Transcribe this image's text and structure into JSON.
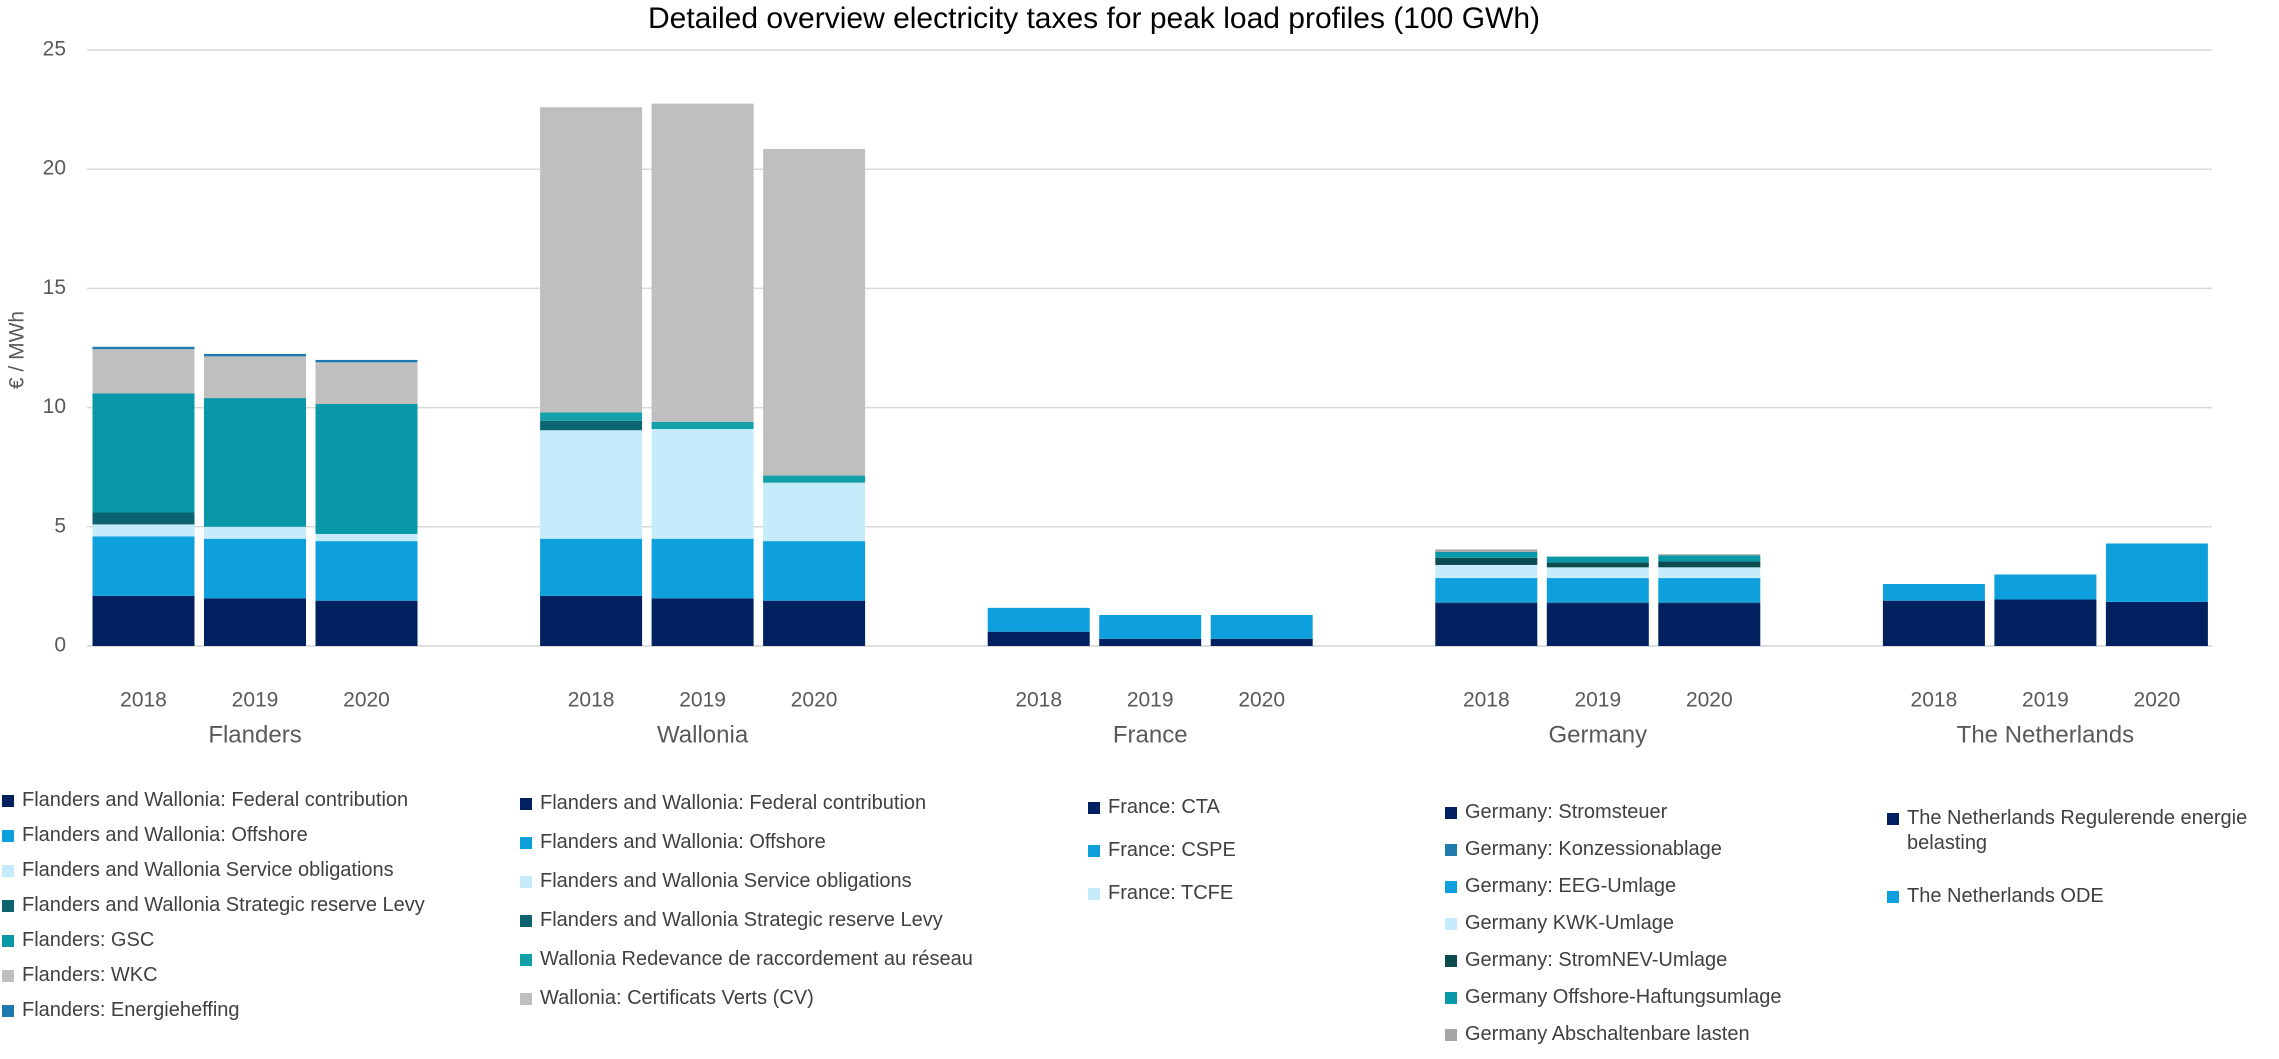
{
  "chart_data": {
    "type": "stacked_bar",
    "title": "Detailed overview electricity taxes for peak load profiles (100 GWh)",
    "ylabel": "€ / MWh",
    "ylim": [
      0,
      25
    ],
    "yticks": [
      0,
      5,
      10,
      15,
      20,
      25
    ],
    "grid": true,
    "years": [
      "2018",
      "2019",
      "2020"
    ],
    "groups": [
      {
        "name": "Flanders",
        "series": [
          {
            "name": "Flanders and Wallonia: Federal contribution",
            "color": "#002060",
            "values": [
              2.1,
              2.0,
              1.9
            ]
          },
          {
            "name": "Flanders and Wallonia: Offshore",
            "color": "#0ea0dc",
            "values": [
              2.5,
              2.5,
              2.5
            ]
          },
          {
            "name": "Flanders and Wallonia Service obligations",
            "color": "#c6ecfb",
            "values": [
              0.5,
              0.5,
              0.3
            ]
          },
          {
            "name": "Flanders and Wallonia Strategic reserve Levy",
            "color": "#0b6470",
            "values": [
              0.5,
              0,
              0
            ]
          },
          {
            "name": "Flanders: GSC",
            "color": "#0898a8",
            "values": [
              5.0,
              5.4,
              5.45
            ]
          },
          {
            "name": "Flanders: WKC",
            "color": "#bfbfbf",
            "values": [
              1.85,
              1.75,
              1.75
            ]
          },
          {
            "name": "Flanders: Energieheffing",
            "color": "#1f78b0",
            "values": [
              0.1,
              0.1,
              0.1
            ]
          }
        ]
      },
      {
        "name": "Wallonia",
        "series": [
          {
            "name": "Flanders and Wallonia: Federal contribution",
            "color": "#002060",
            "values": [
              2.1,
              2.0,
              1.9
            ]
          },
          {
            "name": "Flanders and Wallonia: Offshore",
            "color": "#0ea0dc",
            "values": [
              2.4,
              2.5,
              2.5
            ]
          },
          {
            "name": "Flanders and Wallonia Service obligations",
            "color": "#c6ecfb",
            "values": [
              4.55,
              4.6,
              2.45
            ]
          },
          {
            "name": "Flanders and Wallonia Strategic reserve Levy",
            "color": "#0b6470",
            "values": [
              0.4,
              0,
              0
            ]
          },
          {
            "name": "Wallonia Redevance de raccordement au réseau",
            "color": "#13a0a8",
            "values": [
              0.35,
              0.3,
              0.3
            ]
          },
          {
            "name": "Wallonia: Certificats Verts (CV)",
            "color": "#bfbfbf",
            "values": [
              12.8,
              13.35,
              13.7
            ]
          }
        ]
      },
      {
        "name": "France",
        "series": [
          {
            "name": "France: CTA",
            "color": "#002060",
            "values": [
              0.6,
              0.3,
              0.3
            ]
          },
          {
            "name": "France: CSPE",
            "color": "#0ea0dc",
            "values": [
              1.0,
              1.0,
              1.0
            ]
          },
          {
            "name": "France: TCFE",
            "color": "#c6ecfb",
            "values": [
              0,
              0,
              0
            ]
          }
        ]
      },
      {
        "name": "Germany",
        "series": [
          {
            "name": "Germany: Stromsteuer",
            "color": "#002060",
            "values": [
              1.8,
              1.8,
              1.8
            ]
          },
          {
            "name": "Germany: Konzessionablage",
            "color": "#1f7bab",
            "values": [
              0.05,
              0.05,
              0.05
            ]
          },
          {
            "name": "Germany: EEG-Umlage",
            "color": "#0ea0dc",
            "values": [
              1.0,
              1.0,
              1.0
            ]
          },
          {
            "name": "Germany KWK-Umlage",
            "color": "#c6ecfb",
            "values": [
              0.55,
              0.45,
              0.45
            ]
          },
          {
            "name": "Germany: StromNEV-Umlage",
            "color": "#0b4a4f",
            "values": [
              0.3,
              0.2,
              0.25
            ]
          },
          {
            "name": "Germany Offshore-Haftungsumlage",
            "color": "#0898a8",
            "values": [
              0.25,
              0.25,
              0.25
            ]
          },
          {
            "name": "Germany Abschaltenbare lasten",
            "color": "#a6a6a6",
            "values": [
              0.1,
              0,
              0.05
            ]
          }
        ]
      },
      {
        "name": "The Netherlands",
        "series": [
          {
            "name": "The Netherlands Regulerende energie belasting",
            "color": "#002060",
            "values": [
              1.9,
              1.95,
              1.85
            ]
          },
          {
            "name": "The Netherlands ODE",
            "color": "#0ea0dc",
            "values": [
              0.7,
              1.05,
              2.45
            ]
          }
        ]
      }
    ]
  }
}
